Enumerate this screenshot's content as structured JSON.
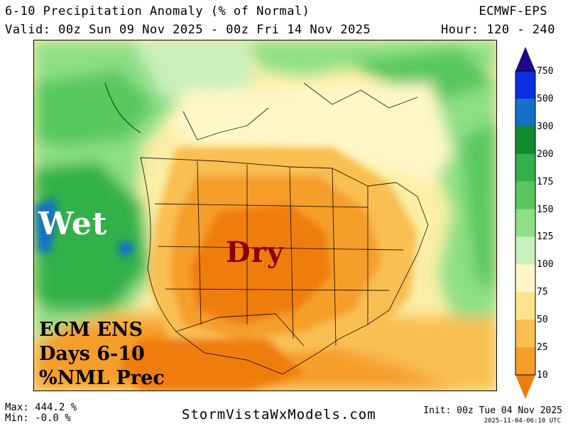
{
  "header": {
    "title": "6-10 Precipitation Anomaly (% of Normal)",
    "valid": "Valid: 00z Sun 09 Nov 2025 - 00z Fri 14 Nov 2025",
    "model": "ECMWF-EPS",
    "hours": "Hour: 120 - 240"
  },
  "map": {
    "overlays": {
      "wet": "Wet",
      "dry": "Dry",
      "note_lines": [
        "ECM ENS",
        "Days 6-10",
        "%NML Prec"
      ]
    },
    "colors": {
      "wet_label": "#ffffff",
      "dry_label": "#8b0000",
      "state_lines": "#000000"
    }
  },
  "colorbar": {
    "ticks": [
      "750",
      "500",
      "300",
      "200",
      "175",
      "150",
      "125",
      "100",
      "75",
      "50",
      "25",
      "10"
    ],
    "colors": [
      "#1a0a8a",
      "#0a2ee0",
      "#1670c8",
      "#0f8a2c",
      "#32b04a",
      "#58c85e",
      "#8edf88",
      "#c8efbc",
      "#fff7c8",
      "#fde38a",
      "#f9bf52",
      "#f59e2a",
      "#ef7d0c"
    ]
  },
  "footer": {
    "max": "Max: 444.2 %",
    "min": "Min: -0.0 %",
    "site": "StormVistaWxModels.com",
    "init": "Init: 00z Tue 04 Nov 2025",
    "stamp": "2025-11-04-06:10 UTC"
  }
}
